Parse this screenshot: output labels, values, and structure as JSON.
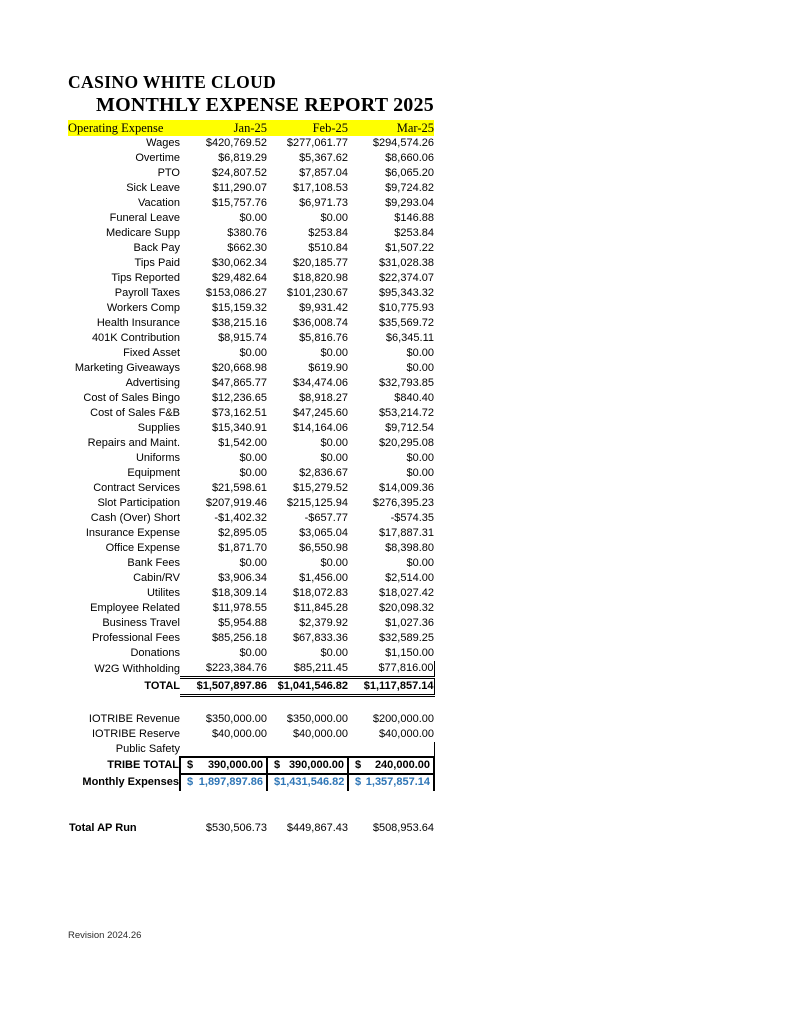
{
  "titles": {
    "line1": "CASINO WHITE CLOUD",
    "line2": "MONTHLY EXPENSE REPORT 2025"
  },
  "table": {
    "header": {
      "label": "Operating Expense",
      "columns": [
        "Jan-25",
        "Feb-25",
        "Mar-25"
      ],
      "highlight_color": "#ffff00"
    },
    "expense_rows": [
      {
        "label": "Wages",
        "values": [
          "$420,769.52",
          "$277,061.77",
          "$294,574.26"
        ]
      },
      {
        "label": "Overtime",
        "values": [
          "$6,819.29",
          "$5,367.62",
          "$8,660.06"
        ]
      },
      {
        "label": "PTO",
        "values": [
          "$24,807.52",
          "$7,857.04",
          "$6,065.20"
        ]
      },
      {
        "label": "Sick Leave",
        "values": [
          "$11,290.07",
          "$17,108.53",
          "$9,724.82"
        ]
      },
      {
        "label": "Vacation",
        "values": [
          "$15,757.76",
          "$6,971.73",
          "$9,293.04"
        ]
      },
      {
        "label": "Funeral Leave",
        "values": [
          "$0.00",
          "$0.00",
          "$146.88"
        ]
      },
      {
        "label": "Medicare Supp",
        "values": [
          "$380.76",
          "$253.84",
          "$253.84"
        ]
      },
      {
        "label": "Back Pay",
        "values": [
          "$662.30",
          "$510.84",
          "$1,507.22"
        ]
      },
      {
        "label": "Tips Paid",
        "values": [
          "$30,062.34",
          "$20,185.77",
          "$31,028.38"
        ]
      },
      {
        "label": "Tips Reported",
        "values": [
          "$29,482.64",
          "$18,820.98",
          "$22,374.07"
        ]
      },
      {
        "label": "Payroll Taxes",
        "values": [
          "$153,086.27",
          "$101,230.67",
          "$95,343.32"
        ]
      },
      {
        "label": "Workers Comp",
        "values": [
          "$15,159.32",
          "$9,931.42",
          "$10,775.93"
        ]
      },
      {
        "label": "Health Insurance",
        "values": [
          "$38,215.16",
          "$36,008.74",
          "$35,569.72"
        ]
      },
      {
        "label": "401K Contribution",
        "values": [
          "$8,915.74",
          "$5,816.76",
          "$6,345.11"
        ]
      },
      {
        "label": "Fixed Asset",
        "values": [
          "$0.00",
          "$0.00",
          "$0.00"
        ]
      },
      {
        "label": "Marketing Giveaways",
        "values": [
          "$20,668.98",
          "$619.90",
          "$0.00"
        ]
      },
      {
        "label": "Advertising",
        "values": [
          "$47,865.77",
          "$34,474.06",
          "$32,793.85"
        ]
      },
      {
        "label": "Cost of Sales Bingo",
        "values": [
          "$12,236.65",
          "$8,918.27",
          "$840.40"
        ]
      },
      {
        "label": "Cost of Sales F&B",
        "values": [
          "$73,162.51",
          "$47,245.60",
          "$53,214.72"
        ]
      },
      {
        "label": "Supplies",
        "values": [
          "$15,340.91",
          "$14,164.06",
          "$9,712.54"
        ]
      },
      {
        "label": "Repairs and Maint.",
        "values": [
          "$1,542.00",
          "$0.00",
          "$20,295.08"
        ]
      },
      {
        "label": "Uniforms",
        "values": [
          "$0.00",
          "$0.00",
          "$0.00"
        ]
      },
      {
        "label": "Equipment",
        "values": [
          "$0.00",
          "$2,836.67",
          "$0.00"
        ]
      },
      {
        "label": "Contract Services",
        "values": [
          "$21,598.61",
          "$15,279.52",
          "$14,009.36"
        ]
      },
      {
        "label": "Slot Participation",
        "values": [
          "$207,919.46",
          "$215,125.94",
          "$276,395.23"
        ]
      },
      {
        "label": "Cash (Over) Short",
        "values": [
          "-$1,402.32",
          "-$657.77",
          "-$574.35"
        ]
      },
      {
        "label": "Insurance Expense",
        "values": [
          "$2,895.05",
          "$3,065.04",
          "$17,887.31"
        ]
      },
      {
        "label": "Office Expense",
        "values": [
          "$1,871.70",
          "$6,550.98",
          "$8,398.80"
        ]
      },
      {
        "label": "Bank Fees",
        "values": [
          "$0.00",
          "$0.00",
          "$0.00"
        ]
      },
      {
        "label": "Cabin/RV",
        "values": [
          "$3,906.34",
          "$1,456.00",
          "$2,514.00"
        ]
      },
      {
        "label": "Utilites",
        "values": [
          "$18,309.14",
          "$18,072.83",
          "$18,027.42"
        ]
      },
      {
        "label": "Employee Related",
        "values": [
          "$11,978.55",
          "$11,845.28",
          "$20,098.32"
        ]
      },
      {
        "label": "Business Travel",
        "values": [
          "$5,954.88",
          "$2,379.92",
          "$1,027.36"
        ]
      },
      {
        "label": "Professional Fees",
        "values": [
          "$85,256.18",
          "$67,833.36",
          "$32,589.25"
        ]
      },
      {
        "label": "Donations",
        "values": [
          "$0.00",
          "$0.00",
          "$1,150.00"
        ]
      },
      {
        "label": "W2G Withholding",
        "values": [
          "$223,384.76",
          "$85,211.45",
          "$77,816.00"
        ]
      }
    ],
    "total_row": {
      "label": "TOTAL",
      "values": [
        "$1,507,897.86",
        "$1,041,546.82",
        "$1,117,857.14"
      ]
    },
    "allocation_rows": [
      {
        "label": "IOTRIBE Revenue",
        "values": [
          "$350,000.00",
          "$350,000.00",
          "$200,000.00"
        ]
      },
      {
        "label": "IOTRIBE Reserve",
        "values": [
          "$40,000.00",
          "$40,000.00",
          "$40,000.00"
        ]
      },
      {
        "label": "Public Safety",
        "values": [
          "",
          "",
          ""
        ]
      }
    ],
    "tribe_total_row": {
      "label": "TRIBE TOTAL",
      "currency": "$",
      "values": [
        "390,000.00",
        "390,000.00",
        "240,000.00"
      ]
    },
    "monthly_expenses_row": {
      "label": "Monthly Expenses",
      "currency": "$",
      "values": [
        "1,897,897.86",
        "1,431,546.82",
        "1,357,857.14"
      ],
      "text_color": "#2e75b6"
    },
    "total_ap_run_row": {
      "label": "Total AP Run",
      "values": [
        "$530,506.73",
        "$449,867.43",
        "$508,953.64"
      ]
    }
  },
  "footer": {
    "revision": "Revision 2024.26"
  }
}
